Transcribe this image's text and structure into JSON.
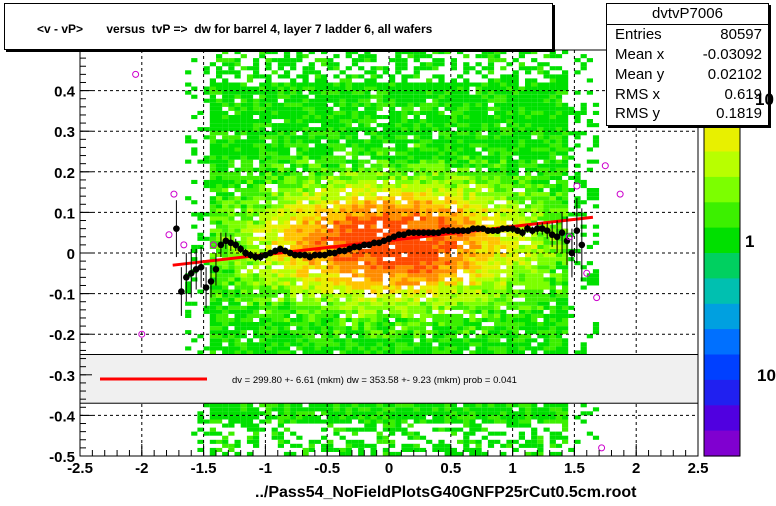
{
  "title": "<v - vP>       versus  tvP =>  dw for barrel 4, layer 7 ladder 6, all wafers",
  "stats": {
    "name": "dvtvP7006",
    "rows": [
      {
        "key": "Entries",
        "value": "80597"
      },
      {
        "key": "Mean x",
        "value": "-0.03092"
      },
      {
        "key": "Mean y",
        "value": "0.02102"
      },
      {
        "key": "RMS x",
        "value": "0.619"
      },
      {
        "key": "RMS y",
        "value": "0.1819"
      }
    ]
  },
  "palette": {
    "labels": [
      "10",
      "1",
      "10"
    ]
  },
  "legend": {
    "text": "dv =  299.80 +-  6.61 (mkm) dw =  353.58 +-  9.23 (mkm) prob = 0.041",
    "line_color": "#ff0000"
  },
  "xlabel": "../Pass54_NoFieldPlotsG40GNFP25rCut0.5cm.root",
  "colors": {
    "fit": "#ff0000",
    "points": "#000000",
    "outliers": "#cc00cc",
    "legend_bg": "#f0f0f0"
  },
  "chart_data": {
    "type": "scatter",
    "title": "<v - vP>       versus  tvP =>  dw for barrel 4, layer 7 ladder 6, all wafers",
    "xlabel": "../Pass54_NoFieldPlotsG40GNFP25rCut0.5cm.root",
    "ylabel": "",
    "xlim": [
      -2.5,
      2.5
    ],
    "ylim": [
      -0.5,
      0.5
    ],
    "x_ticks": [
      "-2.5",
      "-2",
      "-1.5",
      "-1",
      "-0.5",
      "0",
      "0.5",
      "1",
      "1.5",
      "2",
      "2.5"
    ],
    "y_ticks": [
      "-0.5",
      "-0.4",
      "-0.3",
      "-0.2",
      "-0.1",
      "0",
      "0.1",
      "0.2",
      "0.3",
      "0.4"
    ],
    "grid": true,
    "fit_line": {
      "x": [
        -1.75,
        1.65
      ],
      "y": [
        -0.03,
        0.088
      ]
    },
    "profile_points": {
      "x": [
        -1.72,
        -1.68,
        -1.64,
        -1.6,
        -1.56,
        -1.52,
        -1.48,
        -1.44,
        -1.4,
        -1.36,
        -1.32,
        -1.28,
        -1.24,
        -1.2,
        -1.16,
        -1.12,
        -1.08,
        -1.04,
        -1.0,
        -0.96,
        -0.92,
        -0.88,
        -0.84,
        -0.8,
        -0.76,
        -0.72,
        -0.68,
        -0.64,
        -0.6,
        -0.56,
        -0.52,
        -0.48,
        -0.44,
        -0.4,
        -0.36,
        -0.32,
        -0.28,
        -0.24,
        -0.2,
        -0.16,
        -0.12,
        -0.08,
        -0.04,
        0.0,
        0.04,
        0.08,
        0.12,
        0.16,
        0.2,
        0.24,
        0.28,
        0.32,
        0.36,
        0.4,
        0.44,
        0.48,
        0.52,
        0.56,
        0.6,
        0.64,
        0.68,
        0.72,
        0.76,
        0.8,
        0.84,
        0.88,
        0.92,
        0.96,
        1.0,
        1.04,
        1.08,
        1.12,
        1.16,
        1.2,
        1.24,
        1.28,
        1.32,
        1.36,
        1.4,
        1.44,
        1.48,
        1.52,
        1.56
      ],
      "y": [
        0.06,
        -0.095,
        -0.06,
        -0.05,
        -0.04,
        -0.035,
        -0.085,
        -0.07,
        -0.04,
        0.02,
        0.03,
        0.025,
        0.02,
        0.01,
        0.0,
        -0.005,
        -0.01,
        -0.01,
        -0.005,
        0.0,
        0.005,
        0.01,
        0.005,
        0.0,
        -0.005,
        -0.005,
        -0.005,
        -0.01,
        -0.005,
        -0.005,
        -0.005,
        0.0,
        0.0,
        0.005,
        0.005,
        0.01,
        0.015,
        0.015,
        0.02,
        0.02,
        0.025,
        0.025,
        0.03,
        0.035,
        0.04,
        0.045,
        0.045,
        0.05,
        0.05,
        0.05,
        0.05,
        0.05,
        0.05,
        0.05,
        0.055,
        0.055,
        0.055,
        0.055,
        0.055,
        0.055,
        0.06,
        0.06,
        0.06,
        0.055,
        0.055,
        0.055,
        0.06,
        0.06,
        0.06,
        0.055,
        0.05,
        0.06,
        0.055,
        0.06,
        0.06,
        0.055,
        0.045,
        0.04,
        0.05,
        0.03,
        0.0,
        0.055,
        0.02
      ],
      "yerr": [
        0.07,
        0.06,
        0.06,
        0.06,
        0.05,
        0.05,
        0.05,
        0.04,
        0.04,
        0.03,
        0.02,
        0.02,
        0.015,
        0.01,
        0.01,
        0.01,
        0.01,
        0.01,
        0.008,
        0.008,
        0.008,
        0.008,
        0.008,
        0.008,
        0.008,
        0.008,
        0.008,
        0.008,
        0.008,
        0.008,
        0.008,
        0.008,
        0.008,
        0.008,
        0.008,
        0.008,
        0.008,
        0.008,
        0.008,
        0.008,
        0.008,
        0.008,
        0.008,
        0.008,
        0.008,
        0.008,
        0.008,
        0.008,
        0.008,
        0.008,
        0.008,
        0.008,
        0.008,
        0.008,
        0.008,
        0.008,
        0.008,
        0.008,
        0.008,
        0.008,
        0.008,
        0.008,
        0.008,
        0.008,
        0.008,
        0.008,
        0.008,
        0.008,
        0.008,
        0.008,
        0.01,
        0.01,
        0.01,
        0.015,
        0.015,
        0.02,
        0.03,
        0.04,
        0.05,
        0.06,
        0.06,
        0.08,
        0.09
      ]
    },
    "outlier_points": {
      "x": [
        -2.05,
        -2.0,
        -1.78,
        -1.74,
        -1.66,
        -1.42,
        1.46,
        1.52,
        1.6,
        1.68,
        1.72,
        1.75,
        1.87
      ],
      "y": [
        0.44,
        -0.2,
        0.045,
        0.145,
        0.02,
        0.02,
        0.04,
        0.165,
        -0.05,
        -0.11,
        -0.48,
        0.215,
        0.145
      ]
    },
    "color_scale": {
      "type": "log",
      "labels": [
        "10",
        "1",
        "10"
      ]
    }
  }
}
